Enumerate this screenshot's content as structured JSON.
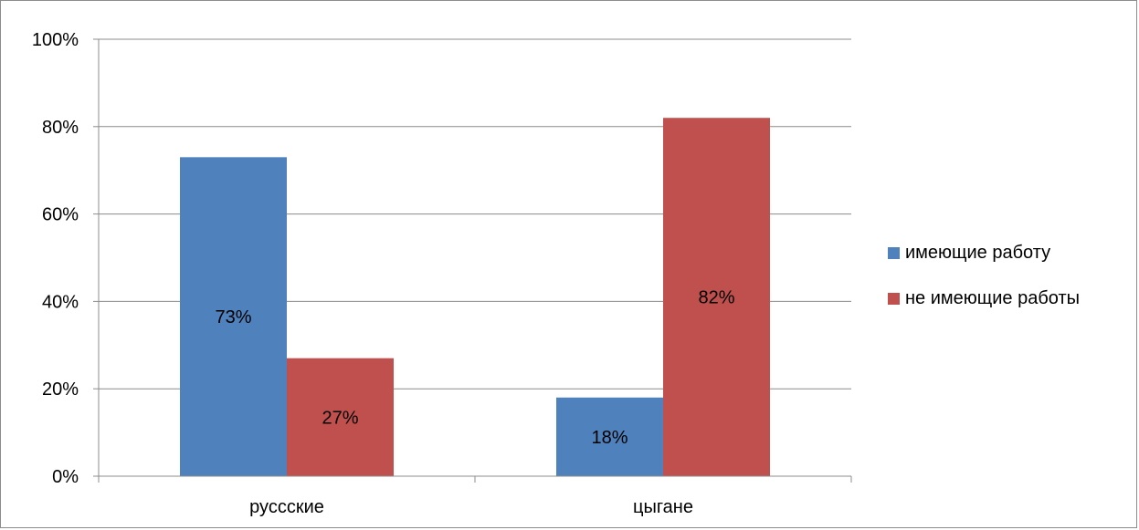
{
  "chart_data": {
    "type": "bar",
    "categories": [
      "руссские",
      "цыгане"
    ],
    "series": [
      {
        "name": "имеющие работу",
        "values": [
          73,
          18
        ],
        "color": "#4f81bd",
        "labels": [
          "73%",
          "18%"
        ]
      },
      {
        "name": "не имеющие работы",
        "values": [
          27,
          82
        ],
        "color": "#c0504d",
        "labels": [
          "27%",
          "82%"
        ]
      }
    ],
    "title": "",
    "xlabel": "",
    "ylabel": "",
    "ylim": [
      0,
      100
    ],
    "yticks": [
      "0%",
      "20%",
      "40%",
      "60%",
      "80%",
      "100%"
    ],
    "grid": true,
    "legend": "right"
  }
}
